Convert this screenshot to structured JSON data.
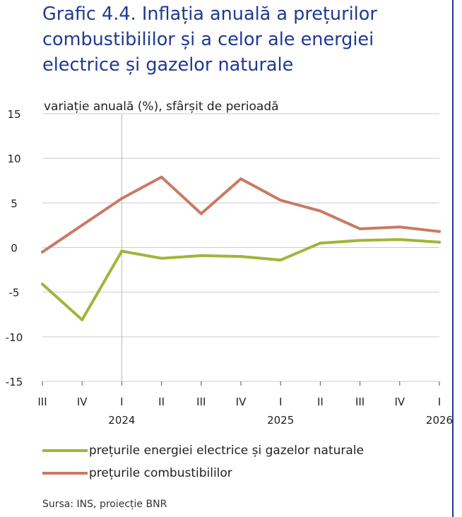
{
  "title": "Grafic 4.4. Inflația anuală a prețurilor combustibililor și a celor ale energiei electrice și gazelor naturale",
  "source": "Sursa: INS, proiecție BNR",
  "colors": {
    "title": "#1f3a93",
    "frame": "#1f3a93",
    "grid": "#cccccc"
  },
  "chart_data": {
    "type": "line",
    "title": "",
    "ylabel": "variație anuală (%), sfârșit de perioadă",
    "ylim": [
      -15,
      15
    ],
    "yticks": [
      15,
      10,
      5,
      0,
      -5,
      -10,
      -15
    ],
    "grid": true,
    "legend_position": "bottom",
    "categories": [
      "III",
      "IV",
      "I",
      "II",
      "III",
      "IV",
      "I",
      "II",
      "III",
      "IV",
      "I"
    ],
    "year_labels": [
      {
        "at": 2,
        "label": "2024"
      },
      {
        "at": 6,
        "label": "2025"
      },
      {
        "at": 10,
        "label": "2026"
      }
    ],
    "vertical_marker_at": 2,
    "series": [
      {
        "name": "prețurile energiei electrice și gazelor naturale",
        "color": "#a3b43a",
        "values": [
          -4.1,
          -8.1,
          -0.4,
          -1.2,
          -0.9,
          -1.0,
          -1.4,
          0.5,
          0.8,
          0.9,
          0.6
        ]
      },
      {
        "name": "prețurile combustibililor",
        "color": "#c97a63",
        "values": [
          -0.5,
          2.5,
          5.5,
          7.9,
          3.8,
          7.7,
          5.3,
          4.1,
          2.1,
          2.3,
          1.8
        ]
      }
    ]
  }
}
